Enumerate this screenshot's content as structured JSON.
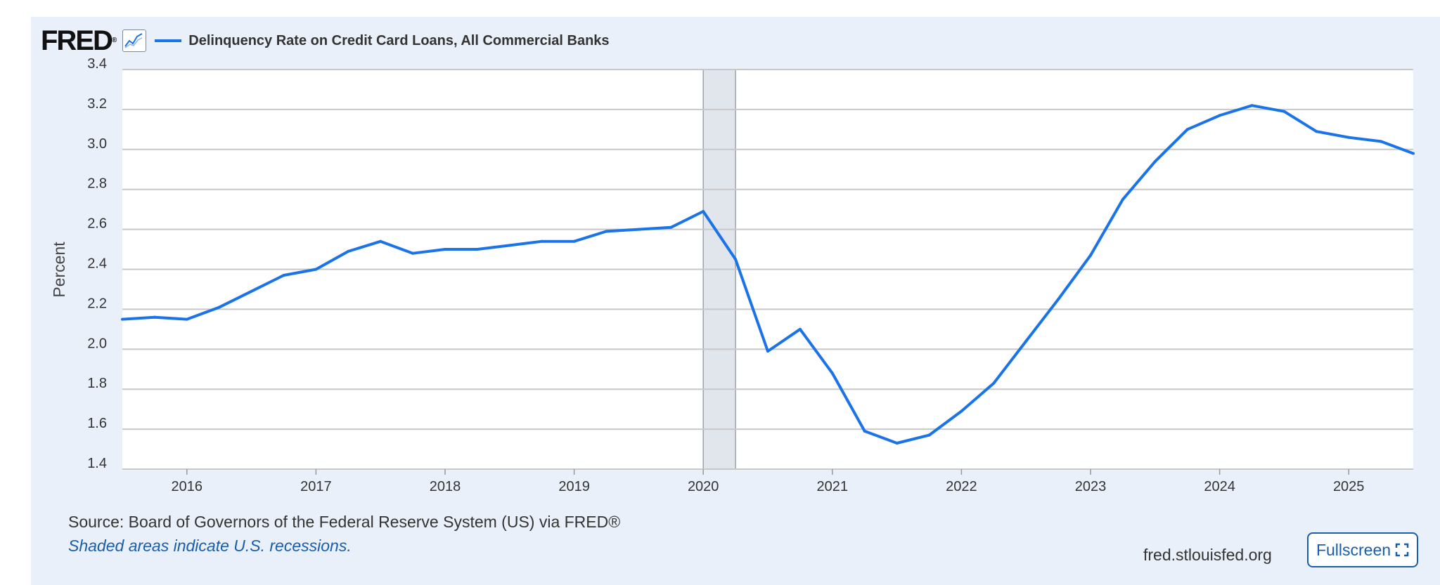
{
  "header": {
    "logo_text": "FRED",
    "logo_mark": "®",
    "graph_icon": "line-graph-icon",
    "series_label": "Delinquency Rate on Credit Card Loans, All Commercial Banks"
  },
  "footer": {
    "source": "Source: Board of Governors of the Federal Reserve System (US) via FRED®",
    "note": "Shaded areas indicate U.S. recessions.",
    "site": "fred.stlouisfed.org",
    "fullscreen_label": "Fullscreen",
    "fullscreen_icon": "expand-icon"
  },
  "colors": {
    "line": "#1a73e8",
    "background": "#e9f0f9",
    "recession": "#e1e6ed",
    "grid": "#c8c8c8",
    "link": "#1a5dab"
  },
  "chart_data": {
    "type": "line",
    "title": "",
    "xlabel": "",
    "ylabel": "Percent",
    "ylim": [
      1.4,
      3.4
    ],
    "yticks": [
      "1.4",
      "1.6",
      "1.8",
      "2.0",
      "2.2",
      "2.4",
      "2.6",
      "2.8",
      "3.0",
      "3.2",
      "3.4"
    ],
    "xlim": [
      2015.5,
      2025.5
    ],
    "xticks": [
      "2016",
      "2017",
      "2018",
      "2019",
      "2020",
      "2021",
      "2022",
      "2023",
      "2024",
      "2025"
    ],
    "grid": true,
    "recessions": [
      [
        2020.0,
        2020.25
      ]
    ],
    "series": [
      {
        "name": "Delinquency Rate on Credit Card Loans, All Commercial Banks",
        "x": [
          2015.5,
          2015.75,
          2016.0,
          2016.25,
          2016.5,
          2016.75,
          2017.0,
          2017.25,
          2017.5,
          2017.75,
          2018.0,
          2018.25,
          2018.5,
          2018.75,
          2019.0,
          2019.25,
          2019.5,
          2019.75,
          2020.0,
          2020.25,
          2020.5,
          2020.75,
          2021.0,
          2021.25,
          2021.5,
          2021.75,
          2022.0,
          2022.25,
          2022.5,
          2022.75,
          2023.0,
          2023.25,
          2023.5,
          2023.75,
          2024.0,
          2024.25,
          2024.5,
          2024.75,
          2025.0,
          2025.25,
          2025.5
        ],
        "values": [
          2.15,
          2.16,
          2.15,
          2.21,
          2.29,
          2.37,
          2.4,
          2.49,
          2.54,
          2.48,
          2.5,
          2.5,
          2.52,
          2.54,
          2.54,
          2.59,
          2.6,
          2.61,
          2.69,
          2.45,
          1.99,
          2.1,
          1.88,
          1.59,
          1.53,
          1.57,
          1.69,
          1.83,
          2.04,
          2.25,
          2.47,
          2.75,
          2.94,
          3.1,
          3.17,
          3.22,
          3.19,
          3.09,
          3.06,
          3.04,
          2.98
        ]
      }
    ]
  }
}
